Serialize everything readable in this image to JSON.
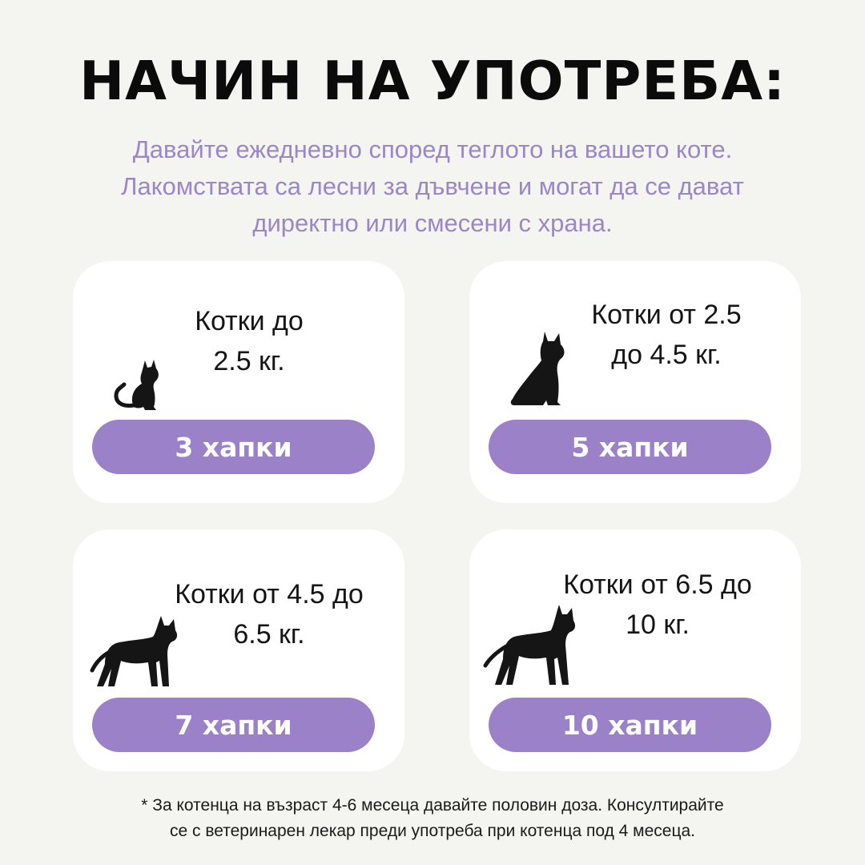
{
  "header": {
    "title": "НАЧИН НА УПОТРЕБА:",
    "subtitle": "Давайте ежедневно според теглото на вашето коте. Лакомствата са лесни за дъвчене и могат да се дават директно или смесени с храна."
  },
  "cards": [
    {
      "label_line1": "Котки до",
      "label_line2": "2.5 кг.",
      "dose": "3 хапки",
      "icon": "sitting-kitten-icon"
    },
    {
      "label_line1": "Котки от 2.5",
      "label_line2": "до 4.5 кг.",
      "dose": "5 хапки",
      "icon": "sitting-cat-icon"
    },
    {
      "label_line1": "Котки от 4.5 до",
      "label_line2": "6.5 кг.",
      "dose": "7 хапки",
      "icon": "walking-cat-icon"
    },
    {
      "label_line1": "Котки от 6.5 до",
      "label_line2": "10 кг.",
      "dose": "10 хапки",
      "icon": "standing-cat-icon"
    }
  ],
  "footnote": {
    "line1": "* За котенца на възраст 4-6 месеца давайте половин доза. Консултирайте",
    "line2": "се с ветеринарен лекар преди употреба при котенца под 4 месеца."
  },
  "colors": {
    "background": "#f4f4f1",
    "accent": "#9b82c8",
    "subtitle": "#9b86c8",
    "card": "#ffffff"
  }
}
